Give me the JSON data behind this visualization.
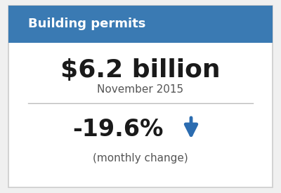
{
  "title": "Building permits",
  "main_value": "$6.2 billion",
  "subtitle": "November 2015",
  "change_value": "-19.6%",
  "change_label": "(monthly change)",
  "header_bg_color": "#3a7ab3",
  "header_text_color": "#ffffff",
  "card_bg_color": "#ffffff",
  "card_border_color": "#cccccc",
  "main_value_color": "#1a1a1a",
  "subtitle_color": "#555555",
  "change_value_color": "#1a1a1a",
  "change_label_color": "#555555",
  "arrow_color": "#2b6cb0",
  "divider_color": "#bbbbbb",
  "header_fontsize": 13,
  "main_value_fontsize": 26,
  "subtitle_fontsize": 11,
  "change_value_fontsize": 24,
  "change_label_fontsize": 11
}
